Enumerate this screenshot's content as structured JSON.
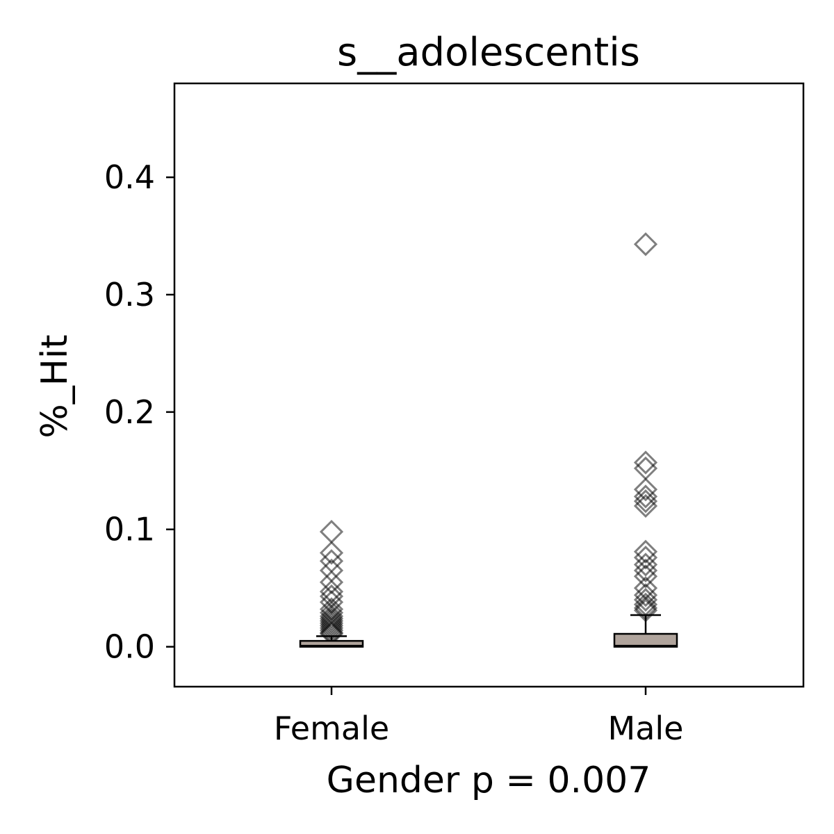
{
  "chart_data": {
    "type": "box",
    "title": "s__adolescentis",
    "xlabel": "Gender p = 0.007",
    "ylabel": "%_Hit",
    "ylim": [
      -0.034,
      0.48
    ],
    "yticks": [
      0.0,
      0.1,
      0.2,
      0.3,
      0.4
    ],
    "ytick_labels": [
      "0.0",
      "0.1",
      "0.2",
      "0.3",
      "0.4"
    ],
    "categories": [
      "Female",
      "Male"
    ],
    "grid": false,
    "legend": "none",
    "colors": {
      "box_fill": "#b0a49c",
      "box_edge": "#000000",
      "outlier_edge": "#000000"
    },
    "boxes": [
      {
        "category": "Female",
        "q1": 0.0,
        "median": 0.001,
        "q3": 0.005,
        "whisker_low": 0.0,
        "whisker_high": 0.009,
        "outliers": [
          0.098,
          0.08,
          0.073,
          0.065,
          0.055,
          0.047,
          0.043,
          0.038,
          0.032,
          0.029,
          0.026,
          0.024,
          0.022,
          0.02,
          0.018,
          0.016,
          0.014,
          0.012,
          0.011
        ]
      },
      {
        "category": "Male",
        "q1": 0.0,
        "median": 0.001,
        "q3": 0.011,
        "whisker_low": 0.0,
        "whisker_high": 0.027,
        "outliers": [
          0.343,
          0.157,
          0.152,
          0.134,
          0.128,
          0.124,
          0.12,
          0.081,
          0.076,
          0.07,
          0.065,
          0.06,
          0.05,
          0.044,
          0.04,
          0.036,
          0.033,
          0.031
        ]
      }
    ]
  }
}
